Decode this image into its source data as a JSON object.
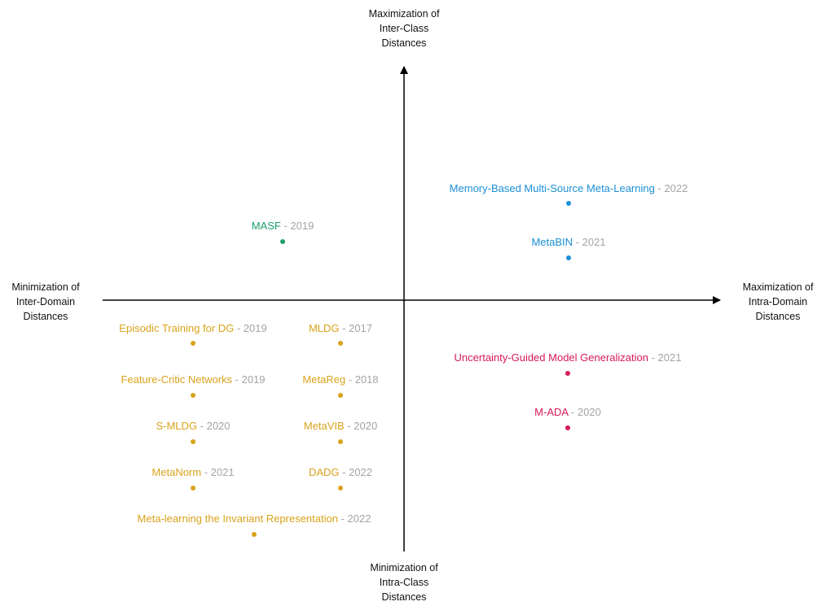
{
  "axes": {
    "top": [
      "Maximization of",
      "Inter-Class",
      "Distances"
    ],
    "bottom": [
      "Minimization of",
      "Intra-Class",
      "Distances"
    ],
    "left": [
      "Minimization of",
      "Inter-Domain",
      "Distances"
    ],
    "right": [
      "Maximization of",
      "Intra-Domain",
      "Distances"
    ]
  },
  "colors": {
    "blue": "#1a8fd6",
    "green": "#1a9e6a",
    "gold": "#d9a21b",
    "red": "#d6195a",
    "year": "#a3a3a3"
  },
  "methods": [
    {
      "name": "Memory-Based Multi-Source Meta-Learning",
      "year": "2022",
      "color": "blue"
    },
    {
      "name": "MetaBIN",
      "year": "2021",
      "color": "blue"
    },
    {
      "name": "MASF",
      "year": "2019",
      "color": "green"
    },
    {
      "name": "Episodic Training for DG",
      "year": "2019",
      "color": "gold"
    },
    {
      "name": "MLDG",
      "year": "2017",
      "color": "gold"
    },
    {
      "name": "Feature-Critic Networks",
      "year": "2019",
      "color": "gold"
    },
    {
      "name": "MetaReg",
      "year": "2018",
      "color": "gold"
    },
    {
      "name": "S-MLDG",
      "year": "2020",
      "color": "gold"
    },
    {
      "name": "MetaVIB",
      "year": "2020",
      "color": "gold"
    },
    {
      "name": "MetaNorm",
      "year": "2021",
      "color": "gold"
    },
    {
      "name": "DADG",
      "year": "2022",
      "color": "gold"
    },
    {
      "name": "Meta-learning the Invariant Representation",
      "year": "2022",
      "color": "gold"
    },
    {
      "name": "Uncertainty-Guided Model Generalization",
      "year": "2021",
      "color": "red"
    },
    {
      "name": "M-ADA",
      "year": "2020",
      "color": "red"
    }
  ]
}
